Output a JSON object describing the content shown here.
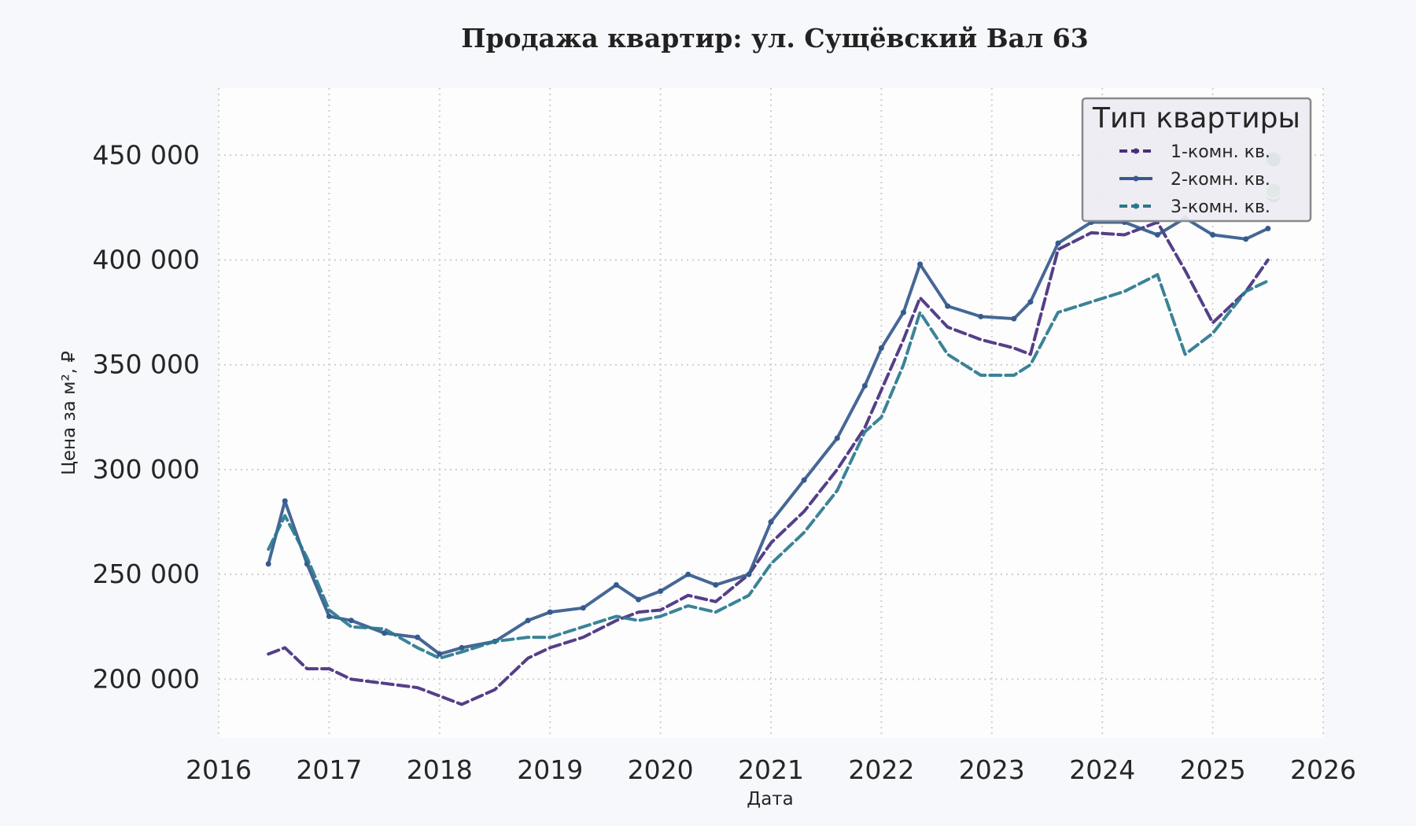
{
  "chart_data": {
    "type": "line",
    "title": "Продажа квартир: ул. Сущёвский Вал 63",
    "xlabel": "Дата",
    "ylabel": "Цена за м², ₽",
    "xlim": [
      2016,
      2026
    ],
    "ylim": [
      172000,
      482000
    ],
    "x_ticks": [
      "2016",
      "2017",
      "2018",
      "2019",
      "2020",
      "2021",
      "2022",
      "2023",
      "2024",
      "2025",
      "2026"
    ],
    "y_ticks": [
      200000,
      250000,
      300000,
      350000,
      400000,
      450000
    ],
    "y_tick_labels": [
      "200 000",
      "250 000",
      "300 000",
      "350 000",
      "400 000",
      "450 000"
    ],
    "grid": true,
    "legend": {
      "title": "Тип квартиры",
      "placement": "top-right",
      "labels": [
        "1-комн. кв.",
        "2-комн. кв.",
        "3-комн. кв."
      ]
    },
    "x": [
      2016.45,
      2016.6,
      2016.8,
      2017.0,
      2017.2,
      2017.5,
      2017.8,
      2018.0,
      2018.2,
      2018.5,
      2018.8,
      2019.0,
      2019.3,
      2019.6,
      2019.8,
      2020.0,
      2020.25,
      2020.5,
      2020.8,
      2021.0,
      2021.3,
      2021.6,
      2021.85,
      2022.0,
      2022.2,
      2022.35,
      2022.6,
      2022.9,
      2023.2,
      2023.35,
      2023.6,
      2023.9,
      2024.2,
      2024.5,
      2024.75,
      2025.0,
      2025.3,
      2025.5
    ],
    "series": [
      {
        "name": "1-комн. кв.",
        "color": "#472f7d",
        "dash": "dashed",
        "values": [
          212000,
          215000,
          205000,
          205000,
          200000,
          198000,
          196000,
          192000,
          188000,
          195000,
          210000,
          215000,
          220000,
          228000,
          232000,
          233000,
          240000,
          237000,
          250000,
          265000,
          280000,
          300000,
          320000,
          338000,
          362000,
          382000,
          368000,
          362000,
          358000,
          355000,
          405000,
          413000,
          412000,
          418000,
          395000,
          370000,
          385000,
          400000
        ]
      },
      {
        "name": "2-комн. кв.",
        "color": "#365a8c",
        "dash": "solid",
        "values": [
          255000,
          285000,
          255000,
          230000,
          228000,
          222000,
          220000,
          212000,
          215000,
          218000,
          228000,
          232000,
          234000,
          245000,
          238000,
          242000,
          250000,
          245000,
          250000,
          275000,
          295000,
          315000,
          340000,
          358000,
          375000,
          398000,
          378000,
          373000,
          372000,
          380000,
          408000,
          418000,
          418000,
          412000,
          420000,
          412000,
          410000,
          415000
        ]
      },
      {
        "name": "3-комн. кв.",
        "color": "#2a788e",
        "dash": "dashed",
        "values": [
          262000,
          278000,
          258000,
          233000,
          225000,
          224000,
          215000,
          210000,
          213000,
          218000,
          220000,
          220000,
          225000,
          230000,
          228000,
          230000,
          235000,
          232000,
          240000,
          255000,
          270000,
          290000,
          318000,
          325000,
          350000,
          375000,
          355000,
          345000,
          345000,
          350000,
          375000,
          380000,
          385000,
          393000,
          355000,
          365000,
          385000,
          390000
        ]
      }
    ],
    "end_markers": [
      {
        "series": "1-комн. кв.",
        "x": 2025.55,
        "y": 431000,
        "color": "#472f7d"
      },
      {
        "series": "2-комн. кв.",
        "x": 2025.55,
        "y": 433000,
        "color": "#5ec962"
      },
      {
        "series": "3-комн. кв.",
        "x": 2025.55,
        "y": 448000,
        "color": "#21918c"
      }
    ]
  }
}
